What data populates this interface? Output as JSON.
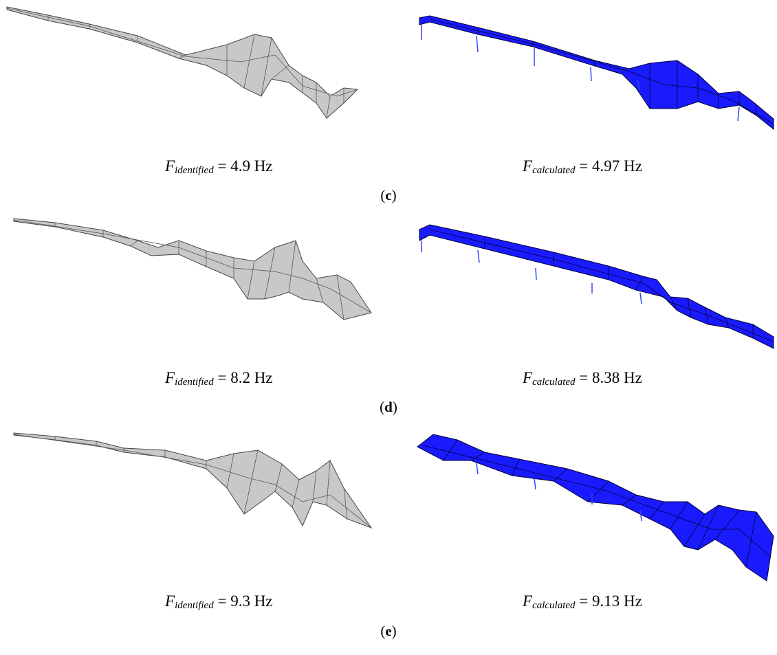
{
  "figure": {
    "panels": [
      {
        "label_open": "(",
        "label_letter": "c",
        "label_close": ")",
        "identified": {
          "symbol": "F",
          "subscript": "identified",
          "value_text": "= 4.9 Hz"
        },
        "calculated": {
          "symbol": "F",
          "subscript": "calculated",
          "value_text": "= 4.97 Hz"
        }
      },
      {
        "label_open": "(",
        "label_letter": "d",
        "label_close": ")",
        "identified": {
          "symbol": "F",
          "subscript": "identified",
          "value_text": "= 8.2 Hz"
        },
        "calculated": {
          "symbol": "F",
          "subscript": "calculated",
          "value_text": "= 8.38 Hz"
        }
      },
      {
        "label_open": "(",
        "label_letter": "e",
        "label_close": ")",
        "identified": {
          "symbol": "F",
          "subscript": "identified",
          "value_text": "= 9.3 Hz"
        },
        "calculated": {
          "symbol": "F",
          "subscript": "calculated",
          "value_text": "= 9.13 Hz"
        }
      }
    ],
    "colors": {
      "identified_fill": "#c8c8c8",
      "identified_mesh": "#555555",
      "calculated_fill": "#1a1aff",
      "calculated_mesh": "#000033"
    }
  }
}
